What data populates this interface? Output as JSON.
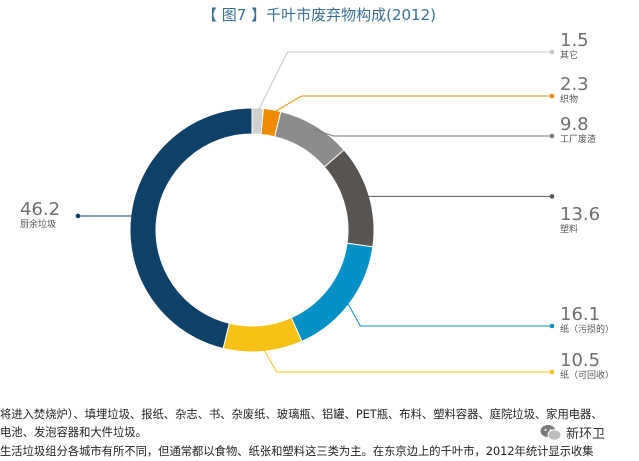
{
  "chart_data": {
    "type": "pie",
    "variant": "donut",
    "title": "【 图7 】千叶市废弃物构成(2012)",
    "slices": [
      {
        "label": "其它",
        "value": 1.5,
        "color": "#d0d0d0"
      },
      {
        "label": "织物",
        "value": 2.3,
        "color": "#f08a00"
      },
      {
        "label": "工厂废渣",
        "value": 9.8,
        "color": "#8c8c8c"
      },
      {
        "label": "塑料",
        "value": 13.6,
        "color": "#575452"
      },
      {
        "label": "纸（污损的）",
        "value": 16.1,
        "color": "#0591c5"
      },
      {
        "label": "纸（可回收）",
        "value": 10.5,
        "color": "#f8c115"
      },
      {
        "label": "厨余垃圾",
        "value": 46.2,
        "color": "#0f4068"
      }
    ]
  },
  "text": {
    "line1": "将进入焚烧炉）、填埋垃圾、报纸、杂志、书、杂废纸、玻璃瓶、铝罐、PET瓶、布料、塑料容器、庭院垃圾、家用电器、",
    "line2": "电池、发泡容器和大件垃圾。",
    "line3": "    生活垃圾组分各城市有所不同，但通常都以食物、纸张和塑料这三类为主。在东京边上的千叶市，2012年统计显示收集"
  },
  "watermark": {
    "label": "新环卫",
    "icon": "wechat-icon"
  }
}
